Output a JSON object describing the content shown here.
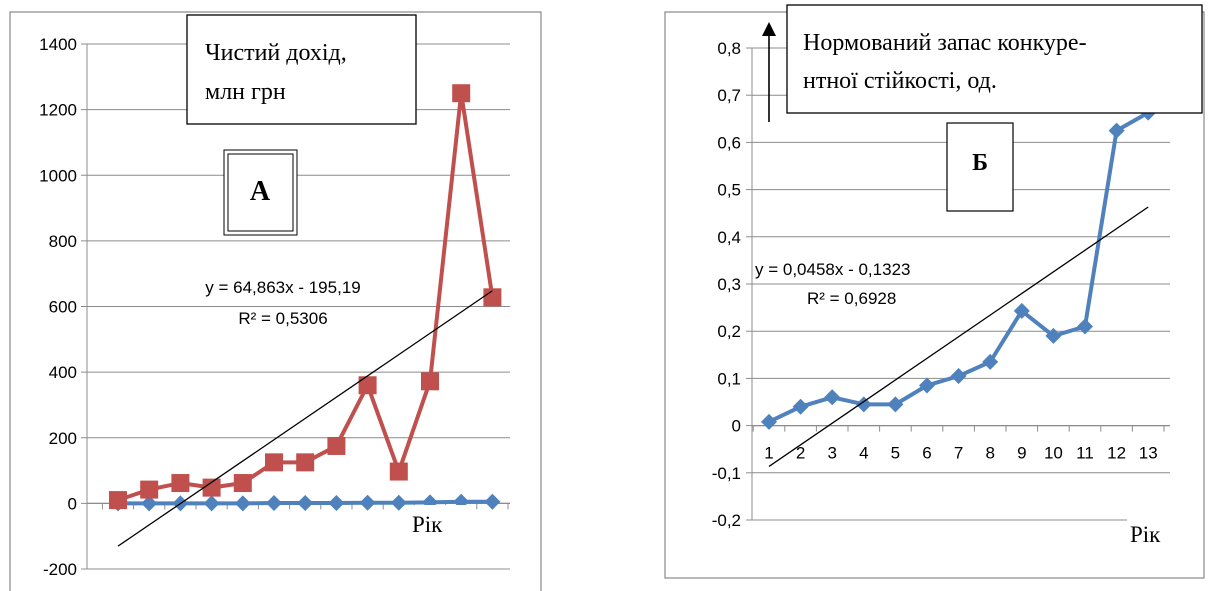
{
  "chart_data": [
    {
      "type": "line",
      "title": "Чистий дохід, млн грн",
      "title_lines": [
        "Чистий дохід,",
        "млн грн"
      ],
      "panel_label": "А",
      "xlabel": "Рік",
      "ylabel": "",
      "ylim": [
        -200,
        1400
      ],
      "yticks": [
        -200,
        0,
        200,
        400,
        600,
        800,
        1000,
        1200,
        1400
      ],
      "grid": true,
      "x": [
        1,
        2,
        3,
        4,
        5,
        6,
        7,
        8,
        9,
        10,
        11,
        12,
        13
      ],
      "series": [
        {
          "name": "",
          "color": "#c0504d",
          "marker": "square",
          "values": [
            10,
            42,
            62,
            48,
            62,
            125,
            125,
            175,
            360,
            97,
            372,
            1250,
            628
          ]
        },
        {
          "name": "",
          "color": "#4f81bd",
          "marker": "diamond",
          "values": [
            0,
            0,
            0,
            0,
            0,
            1,
            1,
            1,
            2,
            2,
            3,
            5,
            5
          ]
        }
      ],
      "trendline": {
        "slope": 64.863,
        "intercept": -195.19,
        "equation": "y = 64,863x - 195,19",
        "r2": "R² = 0,5306"
      }
    },
    {
      "type": "line",
      "title": "Нормований запас конкурентної стійкості, од.",
      "title_lines": [
        "Нормований запас конкуре-",
        "нтної стійкості, од."
      ],
      "panel_label": "Б",
      "xlabel": "Рік",
      "ylabel": "",
      "ylim": [
        -0.2,
        0.8
      ],
      "yticks": [
        "-0,2",
        "-0,1",
        "0",
        "0,1",
        "0,2",
        "0,3",
        "0,4",
        "0,5",
        "0,6",
        "0,7",
        "0,8"
      ],
      "xticks": [
        "1",
        "2",
        "3",
        "4",
        "5",
        "6",
        "7",
        "8",
        "9",
        "10",
        "11",
        "12",
        "13"
      ],
      "grid": true,
      "x": [
        1,
        2,
        3,
        4,
        5,
        6,
        7,
        8,
        9,
        10,
        11,
        12,
        13
      ],
      "series": [
        {
          "name": "",
          "color": "#4f81bd",
          "marker": "diamond",
          "values": [
            0.008,
            0.04,
            0.06,
            0.045,
            0.045,
            0.085,
            0.105,
            0.135,
            0.243,
            0.19,
            0.21,
            0.625,
            0.663
          ]
        }
      ],
      "trendline": {
        "slope": 0.0458,
        "intercept": -0.1323,
        "equation": "y = 0,0458x - 0,1323",
        "r2": "R² = 0,6928"
      }
    }
  ]
}
